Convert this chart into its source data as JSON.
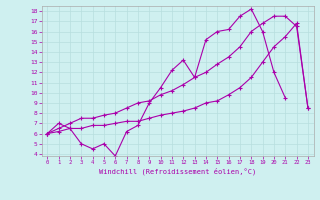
{
  "xlabel": "Windchill (Refroidissement éolien,°C)",
  "bg_color": "#cff0f0",
  "line_color": "#aa00aa",
  "grid_color": "#b8dede",
  "xlim": [
    -0.5,
    23.5
  ],
  "ylim": [
    3.8,
    18.5
  ],
  "xticks": [
    0,
    1,
    2,
    3,
    4,
    5,
    6,
    7,
    8,
    9,
    10,
    11,
    12,
    13,
    14,
    15,
    16,
    17,
    18,
    19,
    20,
    21,
    22,
    23
  ],
  "yticks": [
    4,
    5,
    6,
    7,
    8,
    9,
    10,
    11,
    12,
    13,
    14,
    15,
    16,
    17,
    18
  ],
  "line1_x": [
    0,
    1,
    2,
    3,
    4,
    5,
    6,
    7,
    8,
    9,
    10,
    11,
    12,
    13,
    14,
    15,
    16,
    17,
    18,
    19,
    20,
    21
  ],
  "line1_y": [
    6.0,
    7.0,
    6.5,
    5.0,
    4.5,
    5.0,
    3.8,
    6.2,
    6.8,
    9.0,
    10.5,
    12.2,
    13.2,
    11.5,
    15.2,
    16.0,
    16.2,
    17.5,
    18.2,
    16.0,
    12.0,
    9.5
  ],
  "line2_x": [
    0,
    1,
    2,
    3,
    4,
    5,
    6,
    7,
    8,
    9,
    10,
    11,
    12,
    13,
    14,
    15,
    16,
    17,
    18,
    19,
    20,
    21,
    22,
    23
  ],
  "line2_y": [
    6.0,
    6.5,
    7.0,
    7.5,
    7.5,
    7.8,
    8.0,
    8.5,
    9.0,
    9.2,
    9.8,
    10.2,
    10.8,
    11.5,
    12.0,
    12.8,
    13.5,
    14.5,
    16.0,
    16.8,
    17.5,
    17.5,
    16.5,
    8.5
  ],
  "line3_x": [
    0,
    1,
    2,
    3,
    4,
    5,
    6,
    7,
    8,
    9,
    10,
    11,
    12,
    13,
    14,
    15,
    16,
    17,
    18,
    19,
    20,
    21,
    22,
    23
  ],
  "line3_y": [
    6.0,
    6.2,
    6.5,
    6.5,
    6.8,
    6.8,
    7.0,
    7.2,
    7.2,
    7.5,
    7.8,
    8.0,
    8.2,
    8.5,
    9.0,
    9.2,
    9.8,
    10.5,
    11.5,
    13.0,
    14.5,
    15.5,
    16.8,
    8.5
  ]
}
